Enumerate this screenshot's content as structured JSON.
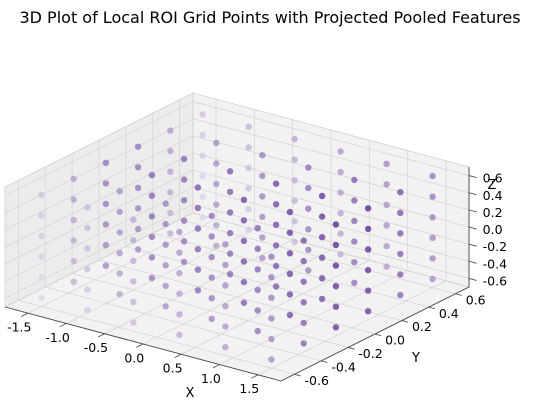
{
  "chart_data": {
    "type": "scatter",
    "projection": "3d",
    "title": "3D Plot of Local ROI Grid Points with Projected Pooled Features",
    "xlabel": "X",
    "ylabel": "Y",
    "zlabel": "Z",
    "xlim": [
      -1.8,
      1.8
    ],
    "ylim": [
      -0.7,
      0.7
    ],
    "zlim": [
      -0.7,
      0.7
    ],
    "xticks": [
      "-1.5",
      "-1.0",
      "-0.5",
      "0.0",
      "0.5",
      "1.0",
      "1.5"
    ],
    "yticks": [
      "-0.6",
      "-0.4",
      "-0.2",
      "0.0",
      "0.2",
      "0.4",
      "0.6"
    ],
    "zticks": [
      "-0.6",
      "-0.4",
      "-0.2",
      "0.0",
      "0.2",
      "0.4",
      "0.6"
    ],
    "grid": true,
    "colormap": "Purples",
    "grid_points": {
      "x": [
        -1.5,
        -0.9,
        -0.3,
        0.3,
        0.9,
        1.5
      ],
      "y": [
        -0.6,
        -0.36,
        -0.12,
        0.12,
        0.36,
        0.6
      ],
      "z": [
        -0.6,
        -0.36,
        -0.12,
        0.12,
        0.36,
        0.6
      ]
    },
    "feature_range": [
      0,
      1
    ],
    "colors": {
      "pane": "#f2f2f2",
      "pane_side": "#ececec",
      "grid": "#d6d6d6",
      "point_low": "#ebe8f3",
      "point_high": "#54278f"
    }
  }
}
